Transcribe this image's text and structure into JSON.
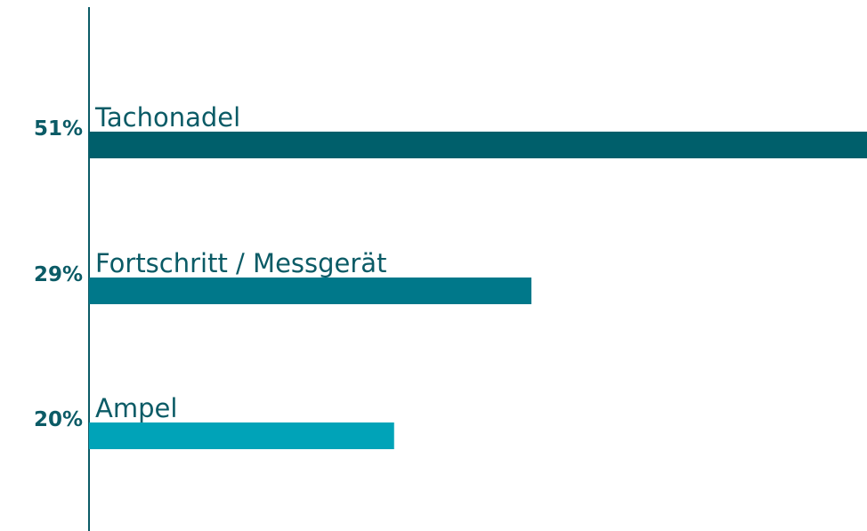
{
  "chart_data": {
    "type": "bar",
    "orientation": "horizontal",
    "categories": [
      "Tachonadel",
      "Fortschritt / Messgerät",
      "Ampel"
    ],
    "values": [
      51,
      29,
      20
    ],
    "value_labels": [
      "51%",
      "29%",
      "20%"
    ],
    "colors": [
      "#005f6b",
      "#00788a",
      "#00a3b8"
    ]
  }
}
